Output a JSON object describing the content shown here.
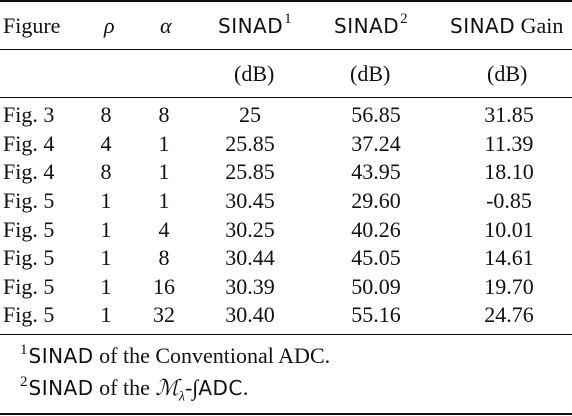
{
  "header": {
    "figure": "Figure",
    "rho": "ρ",
    "alpha": "α",
    "sinad1_label": "SINAD",
    "sinad1_sup": "1",
    "sinad2_label": "SINAD",
    "sinad2_sup": "2",
    "gain_label_mono": "SINAD",
    "gain_label_rest": " Gain"
  },
  "units": {
    "sinad1": "(dB)",
    "sinad2": "(dB)",
    "gain": "(dB)"
  },
  "rows": [
    {
      "figure": "Fig. 3",
      "rho": "8",
      "alpha": "8",
      "sinad1": "25",
      "sinad2": "56.85",
      "gain": "31.85"
    },
    {
      "figure": "Fig. 4",
      "rho": "4",
      "alpha": "1",
      "sinad1": "25.85",
      "sinad2": "37.24",
      "gain": "11.39"
    },
    {
      "figure": "Fig. 4",
      "rho": "8",
      "alpha": "1",
      "sinad1": "25.85",
      "sinad2": "43.95",
      "gain": "18.10"
    },
    {
      "figure": "Fig. 5",
      "rho": "1",
      "alpha": "1",
      "sinad1": "30.45",
      "sinad2": "29.60",
      "gain": "-0.85"
    },
    {
      "figure": "Fig. 5",
      "rho": "1",
      "alpha": "4",
      "sinad1": "30.25",
      "sinad2": "40.26",
      "gain": "10.01"
    },
    {
      "figure": "Fig. 5",
      "rho": "1",
      "alpha": "8",
      "sinad1": "30.44",
      "sinad2": "45.05",
      "gain": "14.61"
    },
    {
      "figure": "Fig. 5",
      "rho": "1",
      "alpha": "16",
      "sinad1": "30.39",
      "sinad2": "50.09",
      "gain": "19.70"
    },
    {
      "figure": "Fig. 5",
      "rho": "1",
      "alpha": "32",
      "sinad1": "30.40",
      "sinad2": "55.16",
      "gain": "24.76"
    }
  ],
  "footnotes": [
    {
      "mark": "1",
      "mono": "SINAD",
      "text": " of the Conventional ADC."
    },
    {
      "mark": "2",
      "mono": "SINAD",
      "text_pre": " of the ",
      "script": "ℳ",
      "sub": "λ",
      "text_mid": "-∫",
      "mono2": "ADC",
      "text_post": "."
    }
  ]
}
